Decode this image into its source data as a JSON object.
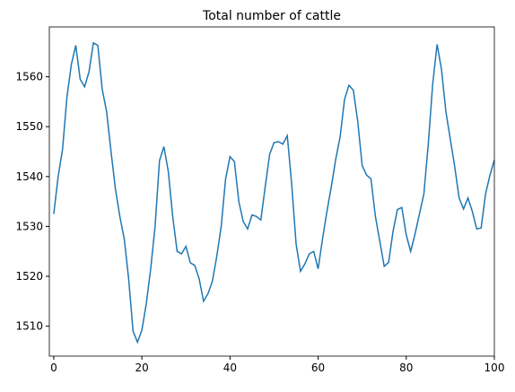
{
  "chart_data": {
    "type": "line",
    "title": "Total number of cattle",
    "x": [
      0,
      1,
      2,
      3,
      4,
      5,
      6,
      7,
      8,
      9,
      10,
      11,
      12,
      13,
      14,
      15,
      16,
      17,
      18,
      19,
      20,
      21,
      22,
      23,
      24,
      25,
      26,
      27,
      28,
      29,
      30,
      31,
      32,
      33,
      34,
      35,
      36,
      37,
      38,
      39,
      40,
      41,
      42,
      43,
      44,
      45,
      46,
      47,
      48,
      49,
      50,
      51,
      52,
      53,
      54,
      55,
      56,
      57,
      58,
      59,
      60,
      61,
      62,
      63,
      64,
      65,
      66,
      67,
      68,
      69,
      70,
      71,
      72,
      73,
      74,
      75,
      76,
      77,
      78,
      79,
      80,
      81,
      82,
      83,
      84,
      85,
      86,
      87,
      88,
      89,
      90,
      91,
      92,
      93,
      94,
      95,
      96,
      97,
      98,
      99,
      100
    ],
    "series": [
      {
        "color": "#1f77b4",
        "values": [
          1532.5,
          1540,
          1545.5,
          1556,
          1562.5,
          1566.3,
          1559.5,
          1558,
          1561,
          1566.8,
          1566.3,
          1557.5,
          1553,
          1545,
          1537.5,
          1532,
          1527.5,
          1519.5,
          1509,
          1506.8,
          1509.2,
          1514.5,
          1521.5,
          1530,
          1543.2,
          1546,
          1541,
          1532,
          1525,
          1524.5,
          1526,
          1522.7,
          1522.2,
          1519.5,
          1515,
          1516.5,
          1519,
          1524,
          1530,
          1539.5,
          1544,
          1543,
          1535,
          1531,
          1529.5,
          1532.3,
          1532,
          1531.3,
          1538,
          1544.5,
          1546.8,
          1547,
          1546.5,
          1548.2,
          1538.5,
          1526.5,
          1521,
          1522.5,
          1524.5,
          1525,
          1521.5,
          1527.5,
          1533,
          1538,
          1543.5,
          1548,
          1555.5,
          1558.3,
          1557.3,
          1551,
          1542.2,
          1540.3,
          1539.5,
          1532,
          1527,
          1522,
          1522.8,
          1529,
          1533.4,
          1533.8,
          1528.3,
          1525,
          1528.5,
          1532.5,
          1536.5,
          1546.5,
          1558.5,
          1566.5,
          1561.5,
          1553,
          1547.5,
          1542,
          1535.7,
          1533.5,
          1535.7,
          1533,
          1529.5,
          1529.7,
          1536.5,
          1540.3,
          1543.3
        ]
      }
    ],
    "xlim": [
      -1,
      100
    ],
    "xticks": [
      0,
      20,
      40,
      60,
      80,
      100
    ],
    "ylim": [
      1504,
      1570
    ],
    "yticks": [
      1510,
      1520,
      1530,
      1540,
      1550,
      1560
    ]
  }
}
